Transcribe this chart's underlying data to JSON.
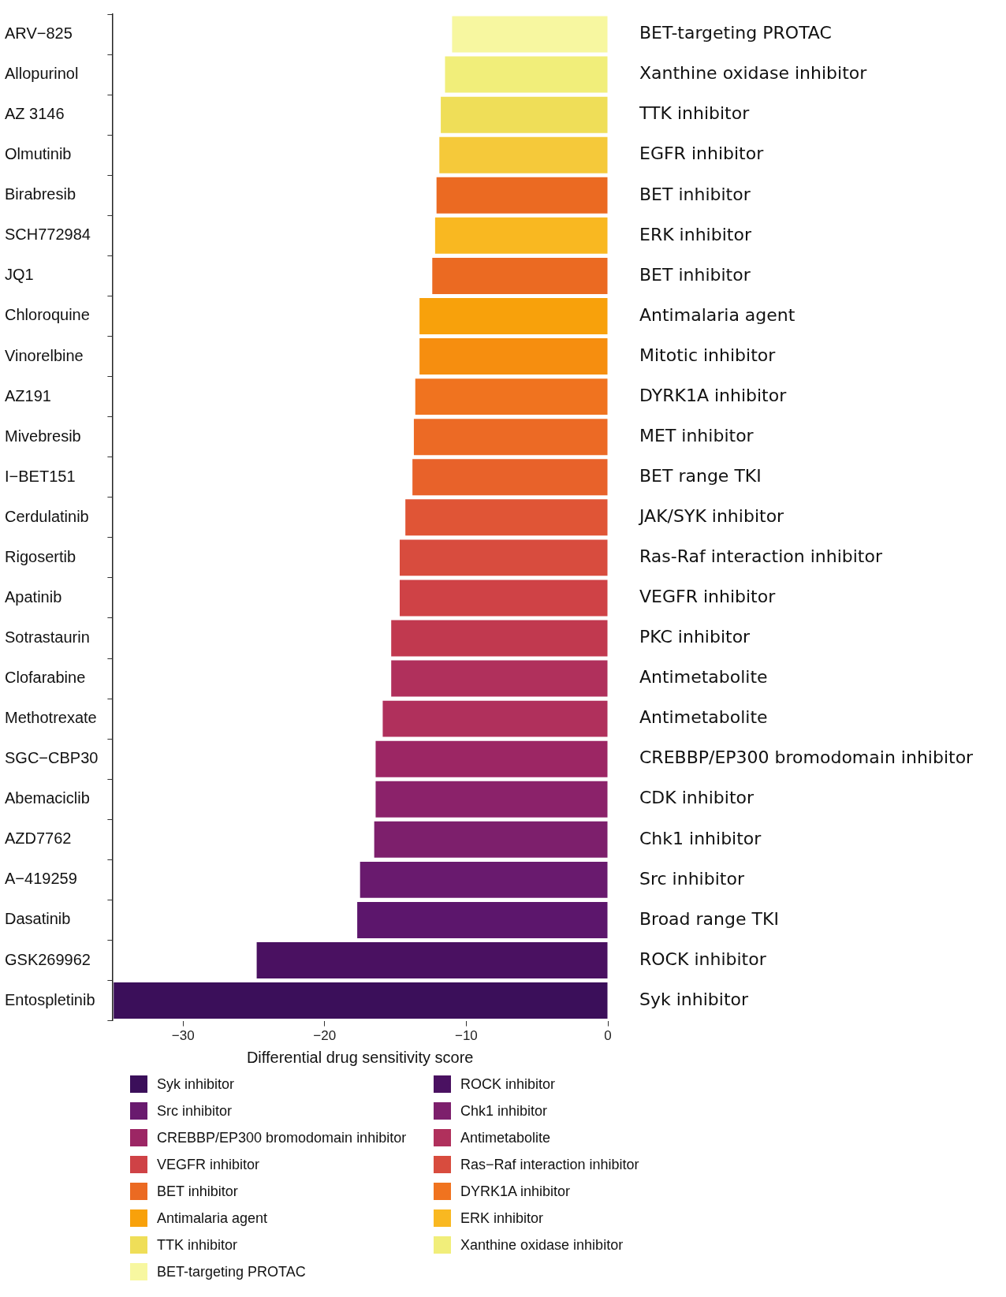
{
  "chart_data": {
    "type": "bar",
    "orientation": "horizontal",
    "stacked": true,
    "xlabel": "Differential drug sensitivity score",
    "xlim": [
      -35,
      0
    ],
    "xticks": [
      {
        "value": -30,
        "label": "−30"
      },
      {
        "value": -20,
        "label": "−20"
      },
      {
        "value": -10,
        "label": "−10"
      },
      0
    ],
    "grid": false,
    "legend": "bottom",
    "categories": [
      "ARV−825",
      "Allopurinol",
      "AZ 3146",
      "Olmutinib",
      "Birabresib",
      "SCH772984",
      "JQ1",
      "Chloroquine",
      "Vinorelbine",
      "AZ191",
      "Mivebresib",
      "I−BET151",
      "Cerdulatinib",
      "Rigosertib",
      "Apatinib",
      "Sotrastaurin",
      "Clofarabine",
      "Methotrexate",
      "SGC−CBP30",
      "Abemaciclib",
      "AZD7762",
      "A−419259",
      "Dasatinib",
      "GSK269962",
      "Entospletinib"
    ],
    "series": [
      {
        "name": "Syk inhibitor",
        "color": "#3b0f5a",
        "values": [
          null,
          null,
          null,
          null,
          null,
          null,
          null,
          null,
          null,
          null,
          null,
          null,
          null,
          null,
          null,
          null,
          null,
          null,
          null,
          null,
          null,
          null,
          null,
          null,
          -34.9
        ]
      },
      {
        "name": "ROCK inhibitor",
        "color": "#4a1161",
        "values": [
          null,
          null,
          null,
          null,
          null,
          null,
          null,
          null,
          null,
          null,
          null,
          null,
          null,
          null,
          null,
          null,
          null,
          null,
          null,
          null,
          null,
          null,
          null,
          -24.8,
          null
        ]
      },
      {
        "name": "Src inhibitor",
        "color": "#691a6e",
        "values": [
          null,
          null,
          null,
          null,
          null,
          null,
          null,
          null,
          null,
          null,
          null,
          null,
          null,
          null,
          null,
          null,
          null,
          null,
          null,
          null,
          null,
          -17.5,
          null,
          null,
          null
        ]
      },
      {
        "name": "Chk1 inhibitor",
        "color": "#7d1f6c",
        "values": [
          null,
          null,
          null,
          null,
          null,
          null,
          null,
          null,
          null,
          null,
          null,
          null,
          null,
          null,
          null,
          null,
          null,
          null,
          null,
          null,
          -16.5,
          null,
          null,
          null,
          null
        ]
      },
      {
        "name": "CREBBP/EP300 bromodomain inhibitor",
        "color": "#9c2664",
        "values": [
          null,
          null,
          null,
          null,
          null,
          null,
          null,
          null,
          null,
          null,
          null,
          null,
          null,
          null,
          null,
          null,
          null,
          null,
          -16.4,
          null,
          null,
          null,
          null,
          null,
          null
        ]
      },
      {
        "name": "Antimetabolite",
        "color": "#b0305c",
        "values": [
          null,
          null,
          null,
          null,
          null,
          null,
          null,
          null,
          null,
          null,
          null,
          null,
          null,
          null,
          null,
          null,
          -15.3,
          -15.9,
          null,
          null,
          null,
          null,
          null,
          null,
          null
        ]
      },
      {
        "name": "VEGFR inhibitor",
        "color": "#cf4246",
        "values": [
          null,
          null,
          null,
          null,
          null,
          null,
          null,
          null,
          null,
          null,
          null,
          null,
          null,
          null,
          -14.7,
          null,
          null,
          null,
          null,
          null,
          null,
          null,
          null,
          null,
          null
        ]
      },
      {
        "name": "Ras−Raf interaction inhibitor",
        "color": "#d84c3e",
        "values": [
          null,
          null,
          null,
          null,
          null,
          null,
          null,
          null,
          null,
          null,
          null,
          null,
          null,
          -14.7,
          null,
          null,
          null,
          null,
          null,
          null,
          null,
          null,
          null,
          null,
          null
        ]
      },
      {
        "name": "BET inhibitor",
        "color": "#eb6a22",
        "values": [
          null,
          null,
          null,
          null,
          -12.1,
          null,
          -12.4,
          null,
          null,
          null,
          null,
          null,
          null,
          null,
          null,
          null,
          null,
          null,
          null,
          null,
          null,
          null,
          null,
          null,
          null
        ]
      },
      {
        "name": "DYRK1A inhibitor",
        "color": "#f0731f",
        "values": [
          null,
          null,
          null,
          null,
          null,
          null,
          null,
          null,
          null,
          -13.6,
          null,
          null,
          null,
          null,
          null,
          null,
          null,
          null,
          null,
          null,
          null,
          null,
          null,
          null,
          null
        ]
      },
      {
        "name": "Antimalaria agent",
        "color": "#f8a10b",
        "values": [
          null,
          null,
          null,
          null,
          null,
          null,
          null,
          -13.3,
          null,
          null,
          null,
          null,
          null,
          null,
          null,
          null,
          null,
          null,
          null,
          null,
          null,
          null,
          null,
          null,
          null
        ]
      },
      {
        "name": "ERK inhibitor",
        "color": "#f9b821",
        "values": [
          null,
          null,
          null,
          null,
          null,
          -12.2,
          null,
          null,
          null,
          null,
          null,
          null,
          null,
          null,
          null,
          null,
          null,
          null,
          null,
          null,
          null,
          null,
          null,
          null,
          null
        ]
      },
      {
        "name": "TTK inhibitor",
        "color": "#efde58",
        "values": [
          null,
          null,
          -11.8,
          null,
          null,
          null,
          null,
          null,
          null,
          null,
          null,
          null,
          null,
          null,
          null,
          null,
          null,
          null,
          null,
          null,
          null,
          null,
          null,
          null,
          null
        ]
      },
      {
        "name": "Xanthine oxidase inhibitor",
        "color": "#f1ee7a",
        "values": [
          null,
          -11.5,
          null,
          null,
          null,
          null,
          null,
          null,
          null,
          null,
          null,
          null,
          null,
          null,
          null,
          null,
          null,
          null,
          null,
          null,
          null,
          null,
          null,
          null,
          null
        ]
      },
      {
        "name": "BET-targeting PROTAC",
        "color": "#f7f7a0",
        "values": [
          -11.0,
          null,
          null,
          null,
          null,
          null,
          null,
          null,
          null,
          null,
          null,
          null,
          null,
          null,
          null,
          null,
          null,
          null,
          null,
          null,
          null,
          null,
          null,
          null,
          null
        ]
      },
      {
        "color": "#f5c93a",
        "values": [
          null,
          null,
          null,
          -11.9,
          null,
          null,
          null,
          null,
          null,
          null,
          null,
          null,
          null,
          null,
          null,
          null,
          null,
          null,
          null,
          null,
          null,
          null,
          null,
          null,
          null
        ]
      },
      {
        "color": "#f68e0f",
        "values": [
          null,
          null,
          null,
          null,
          null,
          null,
          null,
          null,
          -13.3,
          null,
          null,
          null,
          null,
          null,
          null,
          null,
          null,
          null,
          null,
          null,
          null,
          null,
          null,
          null,
          null
        ]
      },
      {
        "color": "#ec6a25",
        "values": [
          null,
          null,
          null,
          null,
          null,
          null,
          null,
          null,
          null,
          null,
          -13.7,
          null,
          null,
          null,
          null,
          null,
          null,
          null,
          null,
          null,
          null,
          null,
          null,
          null,
          null
        ]
      },
      {
        "color": "#e8622a",
        "values": [
          null,
          null,
          null,
          null,
          null,
          null,
          null,
          null,
          null,
          null,
          null,
          -13.8,
          null,
          null,
          null,
          null,
          null,
          null,
          null,
          null,
          null,
          null,
          null,
          null,
          null
        ]
      },
      {
        "color": "#e05536",
        "values": [
          null,
          null,
          null,
          null,
          null,
          null,
          null,
          null,
          null,
          null,
          null,
          null,
          -14.3,
          null,
          null,
          null,
          null,
          null,
          null,
          null,
          null,
          null,
          null,
          null,
          null
        ]
      },
      {
        "color": "#c1394f",
        "values": [
          null,
          null,
          null,
          null,
          null,
          null,
          null,
          null,
          null,
          null,
          null,
          null,
          null,
          null,
          null,
          -15.3,
          null,
          null,
          null,
          null,
          null,
          null,
          null,
          null,
          null
        ]
      },
      {
        "color": "#8b226a",
        "values": [
          null,
          null,
          null,
          null,
          null,
          null,
          null,
          null,
          null,
          null,
          null,
          null,
          null,
          null,
          null,
          null,
          null,
          null,
          null,
          -16.4,
          null,
          null,
          null,
          null,
          null
        ]
      },
      {
        "color": "#5c166c",
        "values": [
          null,
          null,
          null,
          null,
          null,
          null,
          null,
          null,
          null,
          null,
          null,
          null,
          null,
          null,
          null,
          null,
          null,
          null,
          null,
          null,
          null,
          null,
          -17.7,
          null,
          null
        ]
      }
    ],
    "annotations": [
      "BET-targeting PROTAC",
      "Xanthine oxidase inhibitor",
      "TTK inhibitor",
      "EGFR inhibitor",
      "BET inhibitor",
      "ERK inhibitor",
      "BET inhibitor",
      "Antimalaria agent",
      "Mitotic inhibitor",
      "DYRK1A inhibitor",
      "MET inhibitor",
      "BET range TKI",
      "JAK/SYK inhibitor",
      "Ras-Raf interaction inhibitor",
      "VEGFR inhibitor",
      "PKC inhibitor",
      "Antimetabolite",
      "Antimetabolite",
      "CREBBP/EP300 bromodomain inhibitor",
      "CDK inhibitor",
      "Chk1 inhibitor",
      "Src inhibitor",
      "Broad range TKI",
      "ROCK inhibitor",
      "Syk inhibitor"
    ]
  }
}
